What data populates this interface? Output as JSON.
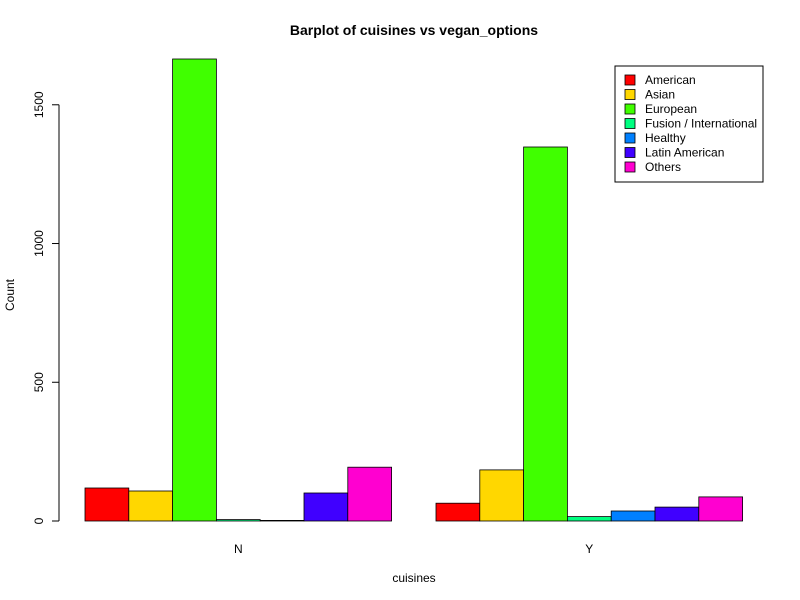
{
  "chart_data": {
    "type": "bar",
    "title": "Barplot of cuisines vs vegan_options",
    "xlabel": "cuisines",
    "ylabel": "Count",
    "categories": [
      "N",
      "Y"
    ],
    "ylim": [
      0,
      1665
    ],
    "yticks": [
      0,
      500,
      1000,
      1500
    ],
    "grid": false,
    "legend_position": "top-right",
    "series": [
      {
        "name": "American",
        "color": "#FF0000",
        "values": [
          119,
          64
        ]
      },
      {
        "name": "Asian",
        "color": "#FFD700",
        "values": [
          108,
          184
        ]
      },
      {
        "name": "European",
        "color": "#40FF00",
        "values": [
          1665,
          1348
        ]
      },
      {
        "name": "Fusion / International",
        "color": "#00FF80",
        "values": [
          5,
          16
        ]
      },
      {
        "name": "Healthy",
        "color": "#0080FF",
        "values": [
          2,
          36
        ]
      },
      {
        "name": "Latin American",
        "color": "#4000FF",
        "values": [
          101,
          50
        ]
      },
      {
        "name": "Others",
        "color": "#FF00D0",
        "values": [
          194,
          87
        ]
      }
    ]
  }
}
